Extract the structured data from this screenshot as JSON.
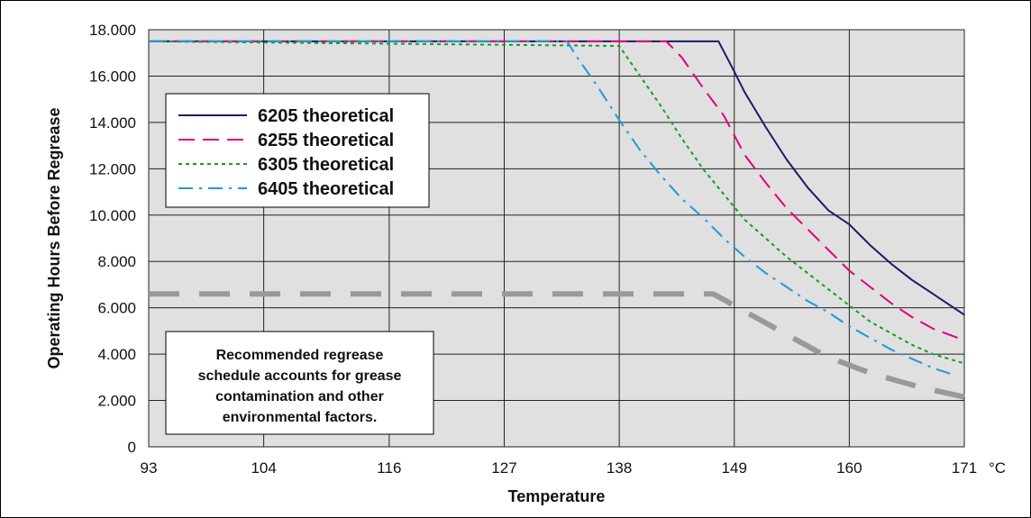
{
  "chart_data": {
    "type": "line",
    "xlabel": "Temperature",
    "x_unit": "°C",
    "ylabel": "Operating Hours Before Regrease",
    "xlim": [
      93,
      171
    ],
    "ylim": [
      0,
      18000
    ],
    "x_ticks": [
      93,
      104,
      116,
      127,
      138,
      149,
      160,
      171
    ],
    "x_tick_labels": [
      "93",
      "104",
      "116",
      "127",
      "138",
      "149",
      "160",
      "171"
    ],
    "y_ticks": [
      0,
      2000,
      4000,
      6000,
      8000,
      10000,
      12000,
      14000,
      16000,
      18000
    ],
    "y_tick_labels": [
      "0",
      "2.000",
      "4.000",
      "6.000",
      "8.000",
      "10.000",
      "12.000",
      "14.000",
      "16.000",
      "18.000"
    ],
    "grid": true,
    "legend_position": "left",
    "colors": {
      "plot_background": "#e0e0e0",
      "grid": "#222222"
    },
    "series": [
      {
        "name": "6205 theoretical",
        "color": "#1b1a6b",
        "dash": "solid",
        "x": [
          93,
          147.5,
          149,
          150,
          152,
          154,
          156,
          158,
          160,
          162,
          164,
          166,
          168,
          170,
          171
        ],
        "y": [
          17500,
          17500,
          16200,
          15300,
          13800,
          12400,
          11200,
          10200,
          9600,
          8700,
          7900,
          7200,
          6600,
          6000,
          5700
        ]
      },
      {
        "name": "6255 theoretical",
        "color": "#e0007a",
        "dash": "dash",
        "x": [
          93,
          142.5,
          144,
          146,
          148,
          150,
          152,
          154,
          156,
          158,
          160,
          162,
          164,
          166,
          168,
          171
        ],
        "y": [
          17500,
          17500,
          16800,
          15500,
          14300,
          12600,
          11400,
          10300,
          9400,
          8500,
          7600,
          6900,
          6200,
          5600,
          5100,
          4600
        ]
      },
      {
        "name": "6305 theoretical",
        "color": "#10a020",
        "dash": "dot",
        "x": [
          93,
          138,
          140,
          142,
          144,
          146,
          148,
          150,
          152,
          154,
          156,
          158,
          160,
          162,
          164,
          166,
          168,
          171
        ],
        "y": [
          17500,
          17300,
          16000,
          14700,
          13300,
          12000,
          10900,
          9800,
          9000,
          8200,
          7500,
          6800,
          6100,
          5400,
          4900,
          4400,
          4000,
          3600
        ]
      },
      {
        "name": "6405 theoretical",
        "color": "#1e9ad8",
        "dash": "dashdot",
        "x": [
          93,
          133,
          134,
          136,
          138,
          140,
          142,
          144,
          146,
          148,
          150,
          152,
          154,
          156,
          158,
          160,
          162,
          164,
          166,
          168,
          170
        ],
        "y": [
          17500,
          17500,
          16800,
          15500,
          14100,
          12800,
          11700,
          10700,
          9900,
          9000,
          8200,
          7500,
          6900,
          6300,
          5800,
          5200,
          4700,
          4200,
          3800,
          3400,
          3100
        ]
      },
      {
        "name": "",
        "color": "#999999",
        "dash": "longdash",
        "width": 6,
        "x": [
          93,
          147,
          149,
          151,
          153,
          155,
          157,
          159,
          161,
          163,
          165,
          167,
          169,
          171
        ],
        "y": [
          6600,
          6600,
          6100,
          5600,
          5100,
          4600,
          4100,
          3700,
          3350,
          3050,
          2800,
          2550,
          2350,
          2150
        ]
      }
    ],
    "annotation": "Recommended regrease schedule accounts for grease contamination and other environmental factors.",
    "annotation_lines": [
      "Recommended regrease",
      "schedule accounts for grease",
      "contamination and other",
      "environmental factors."
    ]
  }
}
